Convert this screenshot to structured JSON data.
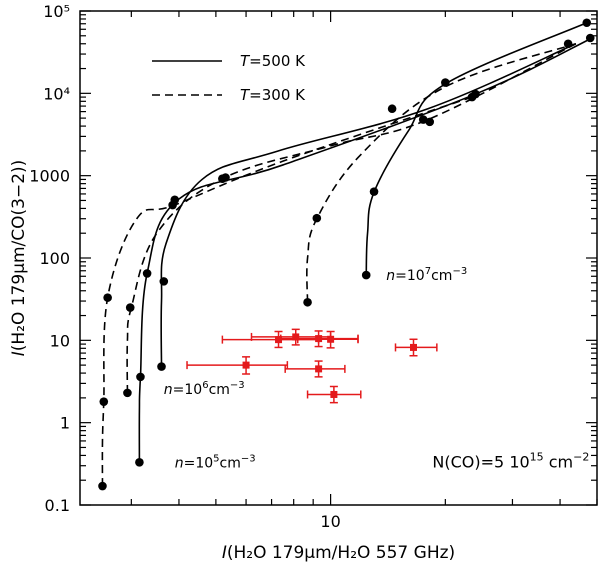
{
  "chart_data": {
    "type": "line",
    "xscale": "log",
    "yscale": "log",
    "xlim": [
      2.2,
      50
    ],
    "ylim": [
      0.1,
      100000
    ],
    "xticks": [
      {
        "value": 10,
        "label": "10"
      }
    ],
    "yticks": [
      {
        "value": 0.1,
        "label": "0.1"
      },
      {
        "value": 1,
        "label": "1"
      },
      {
        "value": 10,
        "label": "10"
      },
      {
        "value": 100,
        "label": "100"
      },
      {
        "value": 1000,
        "label": "1000"
      },
      {
        "value": 10000,
        "label": "10⁴"
      },
      {
        "value": 100000,
        "label": "10⁵"
      }
    ],
    "xlabel": {
      "prefix": "I",
      "text": "(H₂O 179μm/H₂O 557 GHz)"
    },
    "ylabel": {
      "prefix": "I",
      "text": "(H₂O 179μm/CO(3−2))"
    },
    "legend": {
      "placement": "top-left",
      "entries": [
        {
          "var": "T",
          "text": "=500 K",
          "style": "solid"
        },
        {
          "var": "T",
          "text": "=300 K",
          "style": "dashed"
        }
      ]
    },
    "annotations": [
      {
        "var": "n",
        "base": "=10",
        "exp": "5",
        "unit": "cm",
        "uexp": "−3",
        "x": 3.9,
        "y": 0.33
      },
      {
        "var": "n",
        "base": "=10",
        "exp": "6",
        "unit": "cm",
        "uexp": "−3",
        "x": 3.65,
        "y": 2.55
      },
      {
        "var": "n",
        "base": "=10",
        "exp": "7",
        "unit": "cm",
        "uexp": "−3",
        "x": 14.0,
        "y": 62
      }
    ],
    "column_label": {
      "base": "N(CO)=5 10",
      "exp": "15",
      "unit": " cm",
      "uexp": "−2",
      "x": 18.5,
      "y": 0.33
    },
    "series": [
      {
        "name": "T=500 K, n=1e5",
        "style": "solid",
        "points": [
          [
            3.15,
            0.33
          ],
          [
            3.15,
            1.4
          ],
          [
            3.17,
            3.6
          ],
          [
            3.3,
            65
          ],
          [
            4.0,
            520
          ],
          [
            7.5,
            1350
          ],
          [
            24,
            9800
          ],
          [
            49,
            48000
          ]
        ],
        "markers": [
          [
            3.15,
            0.33
          ],
          [
            3.17,
            3.6
          ],
          [
            3.3,
            65
          ],
          [
            3.9,
            510
          ],
          [
            24,
            9800
          ],
          [
            48,
            47000
          ]
        ]
      },
      {
        "name": "T=500 K, n=1e6",
        "style": "solid",
        "points": [
          [
            3.6,
            4.8
          ],
          [
            3.6,
            30
          ],
          [
            3.7,
            150
          ],
          [
            4.6,
            900
          ],
          [
            7.3,
            2000
          ],
          [
            18,
            6500
          ],
          [
            44,
            40000
          ]
        ],
        "markers": [
          [
            3.6,
            4.8
          ],
          [
            3.65,
            52
          ],
          [
            5.2,
            920
          ],
          [
            14.5,
            6500
          ],
          [
            42,
            40000
          ]
        ]
      },
      {
        "name": "T=500 K, n=1e7",
        "style": "solid",
        "points": [
          [
            12.4,
            62
          ],
          [
            12.5,
            200
          ],
          [
            13.0,
            630
          ],
          [
            16,
            3500
          ],
          [
            20,
            13000
          ],
          [
            47,
            72000
          ]
        ],
        "markers": [
          [
            12.4,
            62
          ],
          [
            13.0,
            640
          ],
          [
            20,
            13500
          ],
          [
            47,
            72000
          ]
        ]
      },
      {
        "name": "T=300 K, n=1e5",
        "style": "dashed",
        "points": [
          [
            2.52,
            0.17
          ],
          [
            2.52,
            0.6
          ],
          [
            2.54,
            1.8
          ],
          [
            2.6,
            33
          ],
          [
            3.1,
            300
          ],
          [
            3.9,
            440
          ],
          [
            7.5,
            1500
          ],
          [
            23.5,
            9000
          ]
        ],
        "markers": [
          [
            2.52,
            0.17
          ],
          [
            2.54,
            1.8
          ],
          [
            2.6,
            33
          ],
          [
            3.85,
            440
          ],
          [
            23.5,
            9000
          ]
        ]
      },
      {
        "name": "T=300 K, n=1e6",
        "style": "dashed",
        "points": [
          [
            2.93,
            2.3
          ],
          [
            2.93,
            10
          ],
          [
            3.0,
            25
          ],
          [
            3.5,
            200
          ],
          [
            5.2,
            920
          ],
          [
            10,
            2300
          ],
          [
            18,
            4800
          ],
          [
            44,
            40000
          ]
        ],
        "markers": [
          [
            2.93,
            2.3
          ],
          [
            2.98,
            25
          ],
          [
            5.3,
            950
          ],
          [
            17.5,
            4800
          ],
          [
            18.2,
            4500
          ]
        ]
      },
      {
        "name": "T=300 K, n=1e7",
        "style": "dashed",
        "points": [
          [
            8.7,
            29
          ],
          [
            8.7,
            100
          ],
          [
            9.2,
            300
          ],
          [
            12,
            1800
          ],
          [
            20,
            12000
          ],
          [
            44,
            40000
          ]
        ],
        "markers": [
          [
            8.7,
            29
          ],
          [
            9.2,
            305
          ]
        ]
      }
    ],
    "observations": [
      {
        "x": 6.0,
        "y": 5.0,
        "xerr": [
          4.2,
          7.7
        ],
        "yerr": [
          3.9,
          6.3
        ]
      },
      {
        "x": 7.3,
        "y": 10.2,
        "xerr": [
          5.2,
          9.3
        ],
        "yerr": [
          8.2,
          12.8
        ]
      },
      {
        "x": 8.1,
        "y": 11.0,
        "xerr": [
          6.2,
          10.0
        ],
        "yerr": [
          8.8,
          13.6
        ]
      },
      {
        "x": 9.3,
        "y": 10.5,
        "xerr": [
          7.4,
          11.8
        ],
        "yerr": [
          8.4,
          13.0
        ]
      },
      {
        "x": 10.0,
        "y": 10.3,
        "xerr": [
          8.2,
          11.8
        ],
        "yerr": [
          8.1,
          12.8
        ]
      },
      {
        "x": 9.3,
        "y": 4.5,
        "xerr": [
          7.6,
          10.9
        ],
        "yerr": [
          3.6,
          5.6
        ]
      },
      {
        "x": 10.2,
        "y": 2.2,
        "xerr": [
          8.7,
          12.0
        ],
        "yerr": [
          1.75,
          2.75
        ]
      },
      {
        "x": 16.5,
        "y": 8.2,
        "xerr": [
          14.8,
          19.0
        ],
        "yerr": [
          6.5,
          10.3
        ]
      }
    ],
    "colors": {
      "model": "#000000",
      "observations": "#e41a1c"
    }
  }
}
